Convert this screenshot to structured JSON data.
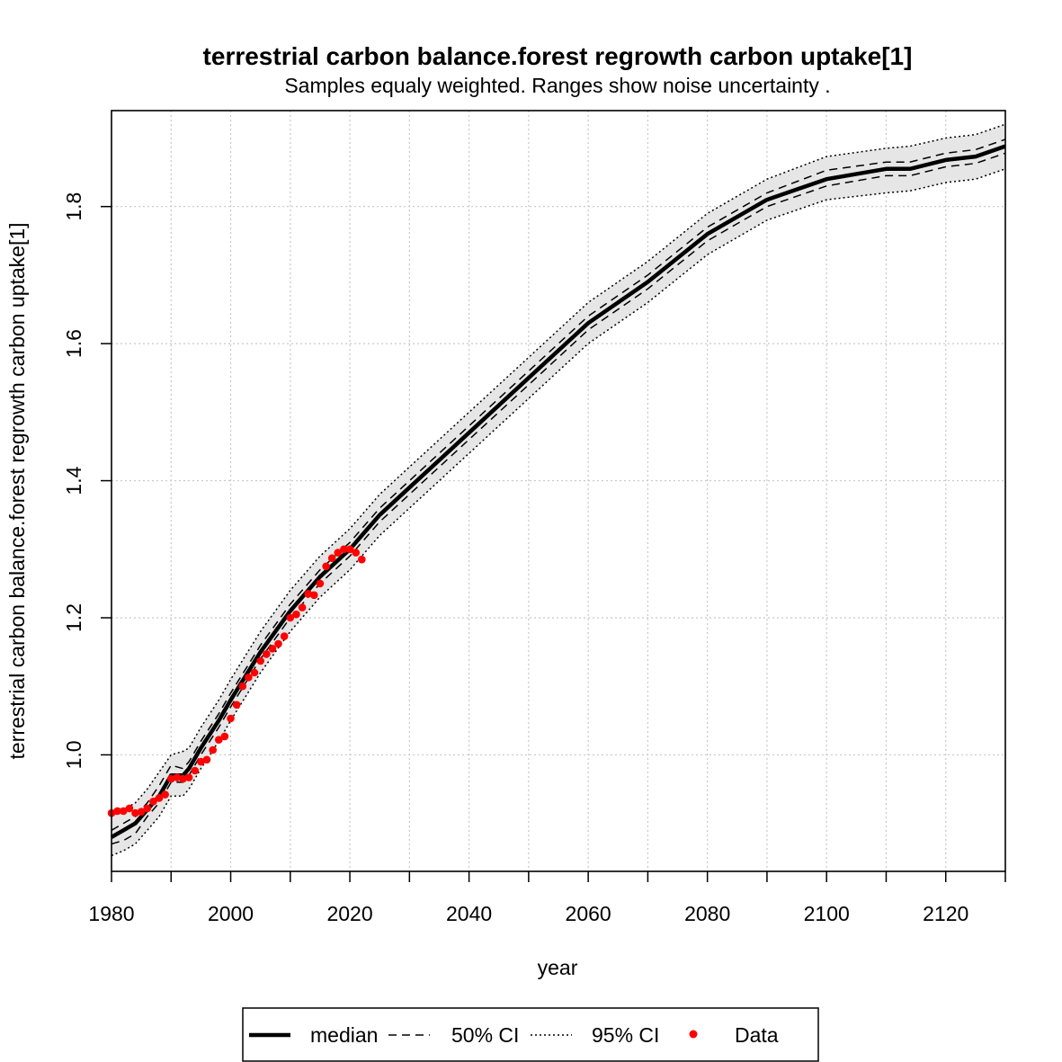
{
  "chart_data": {
    "type": "line",
    "title": "terrestrial carbon balance.forest regrowth carbon uptake[1]",
    "subtitle": "Samples equaly weighted. Ranges show  noise uncertainty .",
    "xlabel": "year",
    "ylabel": "terrestrial carbon balance.forest regrowth carbon uptake[1]",
    "xlim": [
      1980,
      2130
    ],
    "ylim": [
      0.83,
      1.94
    ],
    "x_ticks": [
      1980,
      2000,
      2020,
      2040,
      2060,
      2080,
      2100,
      2120
    ],
    "x_tick_labels": [
      "1980",
      "2000",
      "2020",
      "2040",
      "2060",
      "2080",
      "2100",
      "2120"
    ],
    "x_minor_ticks": [
      1990,
      2010,
      2030,
      2050,
      2070,
      2090,
      2110,
      2130
    ],
    "y_ticks": [
      1.0,
      1.2,
      1.4,
      1.6,
      1.8
    ],
    "y_tick_labels": [
      "1.0",
      "1.2",
      "1.4",
      "1.6",
      "1.8"
    ],
    "grid": true,
    "band_fill": "#e6e6e6",
    "data_color": "#ff0000",
    "legend": {
      "placement": "bottom",
      "entries": [
        {
          "label": "median",
          "style": "solid"
        },
        {
          "label": "50% CI",
          "style": "dashed"
        },
        {
          "label": "95% CI",
          "style": "dotted"
        },
        {
          "label": "Data",
          "style": "point"
        }
      ]
    },
    "series": [
      {
        "name": "median",
        "x": [
          1980,
          1982,
          1984,
          1986,
          1988,
          1990,
          1992,
          1993,
          1995,
          1998,
          2000,
          2005,
          2010,
          2015,
          2020,
          2022,
          2025,
          2030,
          2040,
          2050,
          2060,
          2070,
          2080,
          2090,
          2100,
          2110,
          2114,
          2120,
          2125,
          2130
        ],
        "y": [
          0.88,
          0.89,
          0.9,
          0.92,
          0.94,
          0.97,
          0.97,
          0.98,
          1.01,
          1.05,
          1.08,
          1.15,
          1.21,
          1.26,
          1.3,
          1.32,
          1.35,
          1.39,
          1.47,
          1.55,
          1.63,
          1.69,
          1.76,
          1.81,
          1.84,
          1.855,
          1.855,
          1.868,
          1.873,
          1.888
        ]
      },
      {
        "name": "50% CI lower",
        "x": [
          1980,
          1982,
          1984,
          1986,
          1988,
          1990,
          1992,
          1993,
          1995,
          1998,
          2000,
          2005,
          2010,
          2015,
          2020,
          2022,
          2025,
          2030,
          2040,
          2050,
          2060,
          2070,
          2080,
          2090,
          2100,
          2110,
          2114,
          2120,
          2125,
          2130
        ],
        "y": [
          0.87,
          0.875,
          0.885,
          0.91,
          0.93,
          0.96,
          0.96,
          0.97,
          1.0,
          1.04,
          1.07,
          1.14,
          1.2,
          1.25,
          1.29,
          1.31,
          1.34,
          1.38,
          1.46,
          1.54,
          1.62,
          1.68,
          1.75,
          1.8,
          1.83,
          1.845,
          1.845,
          1.858,
          1.863,
          1.878
        ]
      },
      {
        "name": "50% CI upper",
        "x": [
          1980,
          1982,
          1984,
          1986,
          1988,
          1990,
          1992,
          1993,
          1995,
          1998,
          2000,
          2005,
          2010,
          2015,
          2020,
          2022,
          2025,
          2030,
          2040,
          2050,
          2060,
          2070,
          2080,
          2090,
          2100,
          2110,
          2114,
          2120,
          2125,
          2130
        ],
        "y": [
          0.89,
          0.9,
          0.91,
          0.93,
          0.955,
          0.985,
          0.98,
          0.99,
          1.02,
          1.06,
          1.09,
          1.16,
          1.22,
          1.27,
          1.31,
          1.33,
          1.36,
          1.4,
          1.48,
          1.56,
          1.64,
          1.7,
          1.77,
          1.82,
          1.853,
          1.865,
          1.865,
          1.878,
          1.883,
          1.898
        ]
      },
      {
        "name": "95% CI lower",
        "x": [
          1980,
          1982,
          1984,
          1986,
          1988,
          1990,
          1992,
          1993,
          1995,
          1998,
          2000,
          2005,
          2010,
          2015,
          2020,
          2022,
          2025,
          2030,
          2040,
          2050,
          2060,
          2070,
          2080,
          2090,
          2100,
          2110,
          2114,
          2120,
          2125,
          2130
        ],
        "y": [
          0.853,
          0.86,
          0.87,
          0.89,
          0.91,
          0.94,
          0.94,
          0.95,
          0.98,
          1.02,
          1.05,
          1.12,
          1.18,
          1.23,
          1.27,
          1.29,
          1.32,
          1.36,
          1.44,
          1.52,
          1.6,
          1.66,
          1.73,
          1.78,
          1.81,
          1.82,
          1.823,
          1.835,
          1.84,
          1.855
        ]
      },
      {
        "name": "95% CI upper",
        "x": [
          1980,
          1982,
          1984,
          1986,
          1988,
          1990,
          1992,
          1993,
          1995,
          1998,
          2000,
          2005,
          2010,
          2015,
          2020,
          2022,
          2025,
          2030,
          2040,
          2050,
          2060,
          2070,
          2080,
          2090,
          2100,
          2110,
          2114,
          2120,
          2125,
          2130
        ],
        "y": [
          0.91,
          0.92,
          0.93,
          0.95,
          0.975,
          1.0,
          1.005,
          1.01,
          1.04,
          1.08,
          1.11,
          1.18,
          1.24,
          1.29,
          1.33,
          1.35,
          1.38,
          1.42,
          1.5,
          1.58,
          1.66,
          1.72,
          1.79,
          1.84,
          1.873,
          1.885,
          1.888,
          1.9,
          1.905,
          1.92
        ]
      },
      {
        "name": "Data",
        "x": [
          1980,
          1981,
          1982,
          1983,
          1984,
          1985,
          1986,
          1987,
          1988,
          1989,
          1990,
          1991,
          1992,
          1993,
          1994,
          1995,
          1996,
          1997,
          1998,
          1999,
          2000,
          2001,
          2002,
          2003,
          2004,
          2005,
          2006,
          2007,
          2008,
          2009,
          2010,
          2011,
          2012,
          2013,
          2014,
          2015,
          2016,
          2017,
          2018,
          2019,
          2020,
          2021,
          2022
        ],
        "y": [
          0.915,
          0.918,
          0.918,
          0.922,
          0.915,
          0.917,
          0.922,
          0.932,
          0.937,
          0.942,
          0.965,
          0.967,
          0.965,
          0.967,
          0.977,
          0.99,
          0.993,
          1.007,
          1.022,
          1.027,
          1.053,
          1.073,
          1.1,
          1.113,
          1.12,
          1.137,
          1.147,
          1.155,
          1.162,
          1.173,
          1.2,
          1.205,
          1.215,
          1.235,
          1.233,
          1.25,
          1.275,
          1.287,
          1.295,
          1.3,
          1.3,
          1.295,
          1.285
        ]
      }
    ]
  }
}
